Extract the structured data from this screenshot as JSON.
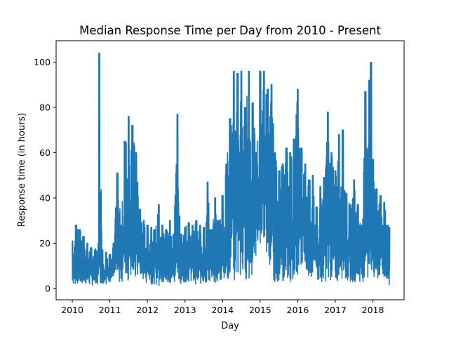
{
  "chart_data": {
    "type": "line",
    "title": "Median Response Time per Day from 2010 - Present",
    "xlabel": "Day",
    "ylabel": "Response time (in hours)",
    "xlim": [
      2009.57,
      2018.83
    ],
    "ylim": [
      -5,
      109.5
    ],
    "x_ticks": [
      "2010",
      "2011",
      "2012",
      "2013",
      "2014",
      "2015",
      "2016",
      "2017",
      "2018"
    ],
    "y_ticks": [
      "0",
      "20",
      "40",
      "60",
      "80",
      "100"
    ],
    "grid": false,
    "legend": "none",
    "series": [
      {
        "color": "#1f77b4",
        "envelope_x": [
          2010.0,
          2010.1,
          2010.2,
          2010.3,
          2010.4,
          2010.5,
          2010.6,
          2010.7,
          2010.72,
          2010.8,
          2010.9,
          2011.0,
          2011.1,
          2011.2,
          2011.3,
          2011.4,
          2011.5,
          2011.6,
          2011.7,
          2011.8,
          2011.9,
          2012.0,
          2012.1,
          2012.2,
          2012.3,
          2012.4,
          2012.5,
          2012.6,
          2012.7,
          2012.8,
          2012.85,
          2012.9,
          2013.0,
          2013.1,
          2013.2,
          2013.3,
          2013.4,
          2013.5,
          2013.6,
          2013.7,
          2013.8,
          2013.9,
          2014.0,
          2014.1,
          2014.2,
          2014.3,
          2014.4,
          2014.5,
          2014.6,
          2014.7,
          2014.8,
          2014.9,
          2015.0,
          2015.1,
          2015.2,
          2015.3,
          2015.4,
          2015.5,
          2015.6,
          2015.7,
          2015.8,
          2015.9,
          2016.0,
          2016.1,
          2016.2,
          2016.3,
          2016.4,
          2016.5,
          2016.6,
          2016.7,
          2016.8,
          2016.9,
          2017.0,
          2017.1,
          2017.2,
          2017.3,
          2017.4,
          2017.5,
          2017.6,
          2017.7,
          2017.8,
          2017.9,
          2017.95,
          2018.0,
          2018.1,
          2018.2,
          2018.3,
          2018.4,
          2018.45
        ],
        "envelope_high": [
          21,
          28,
          26,
          23,
          20,
          18,
          17,
          20,
          104,
          17,
          16,
          15,
          20,
          51,
          28,
          65,
          76,
          72,
          60,
          35,
          30,
          28,
          27,
          26,
          37,
          28,
          26,
          30,
          24,
          77,
          32,
          24,
          27,
          29,
          28,
          30,
          28,
          27,
          47,
          26,
          40,
          30,
          41,
          55,
          75,
          96,
          95,
          96,
          80,
          96,
          82,
          60,
          96,
          96,
          88,
          90,
          60,
          52,
          55,
          62,
          60,
          66,
          88,
          62,
          55,
          48,
          50,
          36,
          45,
          49,
          78,
          60,
          52,
          68,
          70,
          42,
          37,
          48,
          37,
          28,
          87,
          92,
          100,
          57,
          44,
          41,
          38,
          28,
          27
        ],
        "envelope_low": [
          0,
          2,
          2,
          2,
          2,
          1,
          2,
          2,
          2,
          2,
          2,
          3,
          3,
          2,
          3,
          3,
          3,
          3,
          4,
          3,
          3,
          2,
          2,
          2,
          1,
          2,
          2,
          2,
          2,
          3,
          3,
          2,
          3,
          3,
          2,
          2,
          2,
          2,
          2,
          2,
          2,
          2,
          3,
          3,
          3,
          3,
          3,
          3,
          4,
          3,
          6,
          15,
          20,
          22,
          10,
          4,
          3,
          3,
          3,
          3,
          3,
          3,
          6,
          9,
          10,
          5,
          4,
          3,
          3,
          3,
          3,
          3,
          3,
          3,
          4,
          3,
          3,
          3,
          3,
          3,
          3,
          3,
          3,
          3,
          3,
          5,
          2,
          1,
          0
        ]
      }
    ]
  }
}
